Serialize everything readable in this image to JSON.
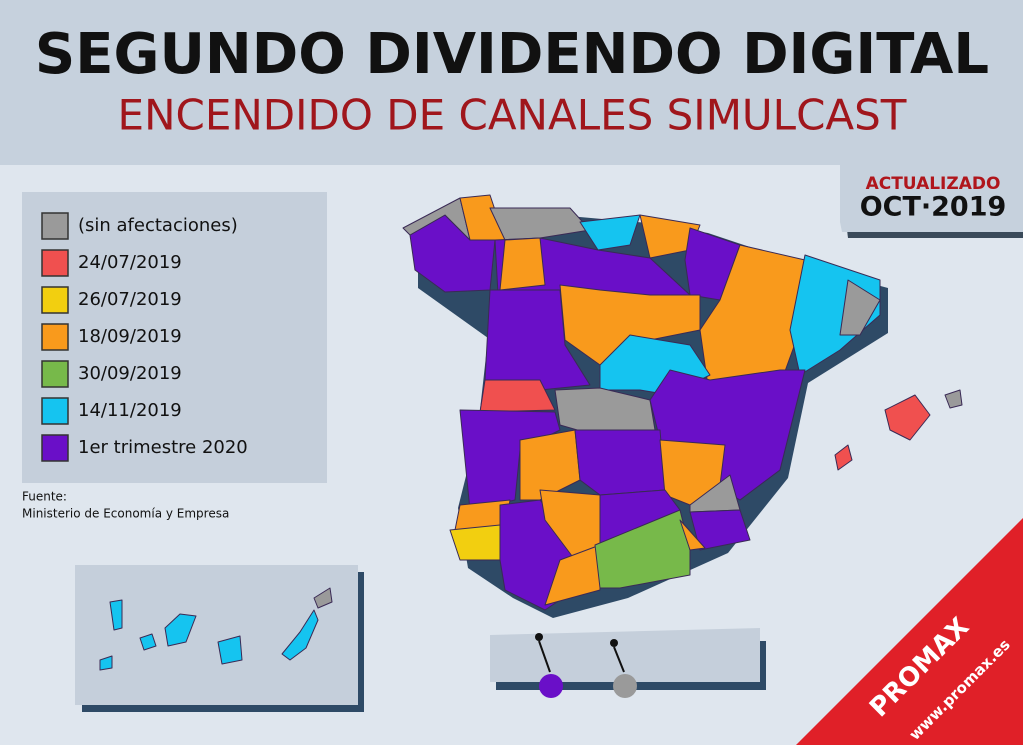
{
  "header": {
    "title": "SEGUNDO DIVIDENDO DIGITAL",
    "subtitle": "ENCENDIDO DE CANALES SIMULCAST"
  },
  "badge": {
    "label": "ACTUALIZADO",
    "date": "OCT·2019"
  },
  "legend": [
    {
      "label": "(sin afectaciones)",
      "color": "#9a9a9a"
    },
    {
      "label": "24/07/2019",
      "color": "#f0504f"
    },
    {
      "label": "26/07/2019",
      "color": "#f2cf10"
    },
    {
      "label": "18/09/2019",
      "color": "#f99a1c"
    },
    {
      "label": "30/09/2019",
      "color": "#77b94a"
    },
    {
      "label": "14/11/2019",
      "color": "#15c4f0"
    },
    {
      "label": "1er trimestre 2020",
      "color": "#6a0fc8"
    }
  ],
  "source": {
    "label": "Fuente:",
    "text": "Ministerio de Economía y Empresa"
  },
  "brand": {
    "name": "PROMAX",
    "url": "www.promax.es"
  }
}
